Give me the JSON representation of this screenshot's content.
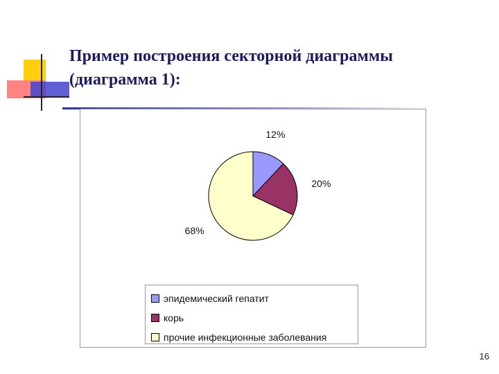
{
  "slide": {
    "title_line1": "Пример построения секторной диаграммы",
    "title_line2": "(диаграмма 1):",
    "page_number": "16"
  },
  "colors": {
    "accent_yellow": "#ffcc00",
    "accent_red": "#ff4d4d",
    "accent_blue": "#3c3cc8",
    "rule": "#2d3190"
  },
  "chart_data": {
    "type": "pie",
    "title": "",
    "categories": [
      "эпидемический гепатит",
      "корь",
      "прочие инфекционные заболевания"
    ],
    "values": [
      12,
      20,
      68
    ],
    "labels": [
      "12%",
      "20%",
      "68%"
    ],
    "colors": [
      "#9999ff",
      "#993366",
      "#ffffcc"
    ],
    "legend_position": "bottom"
  }
}
